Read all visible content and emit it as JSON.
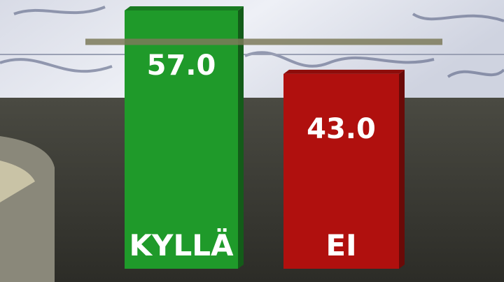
{
  "chart_data": {
    "type": "bar",
    "categories": [
      "KYLLÄ",
      "EI"
    ],
    "values": [
      57.0,
      43.0
    ],
    "value_labels": [
      "57.0",
      "43.0"
    ],
    "reference_line": 50,
    "ylim": [
      0,
      57
    ],
    "grid": false,
    "colors": [
      "#1f9a2a",
      "#b0100e"
    ],
    "title": "",
    "xlabel": "",
    "ylabel": ""
  }
}
